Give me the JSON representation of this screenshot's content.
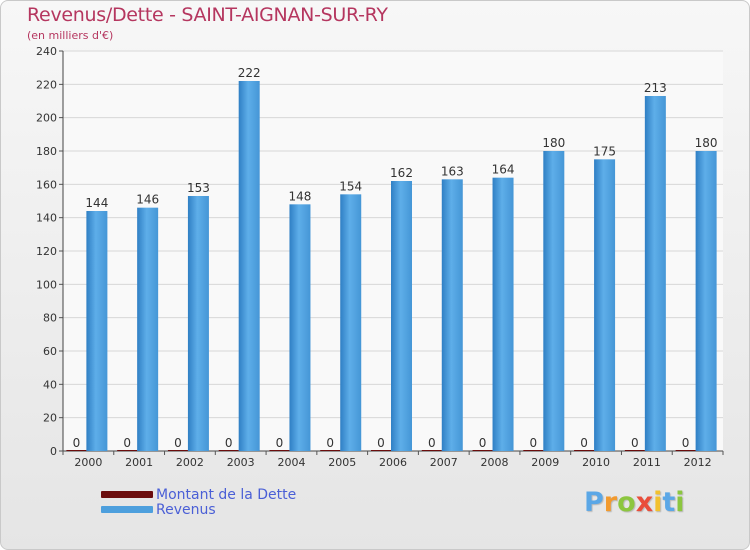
{
  "header": {
    "title": "Revenus/Dette - SAINT-AIGNAN-SUR-RY",
    "subtitle": "(en milliers d'€)"
  },
  "colors": {
    "dette": "#6b0d0d",
    "revenus": "#4d9fdd",
    "title": "#b5365f",
    "legend_text": "#4a5fd6"
  },
  "legend": {
    "items": [
      {
        "label": "Montant de la Dette",
        "color": "#6b0d0d"
      },
      {
        "label": "Revenus",
        "color": "#4d9fdd"
      }
    ]
  },
  "brand": {
    "text": "Proxiti"
  },
  "chart_data": {
    "type": "bar",
    "title": "Revenus/Dette - SAINT-AIGNAN-SUR-RY",
    "subtitle": "(en milliers d'€)",
    "xlabel": "",
    "ylabel": "",
    "ylim": [
      0,
      240
    ],
    "yticks": [
      0,
      20,
      40,
      60,
      80,
      100,
      120,
      140,
      160,
      180,
      200,
      220,
      240
    ],
    "grid": true,
    "legend_position": "bottom-left",
    "categories": [
      "2000",
      "2001",
      "2002",
      "2003",
      "2004",
      "2005",
      "2006",
      "2007",
      "2008",
      "2009",
      "2010",
      "2011",
      "2012"
    ],
    "series": [
      {
        "name": "Montant de la Dette",
        "values": [
          0,
          0,
          0,
          0,
          0,
          0,
          0,
          0,
          0,
          0,
          0,
          0,
          0
        ]
      },
      {
        "name": "Revenus",
        "values": [
          144,
          146,
          153,
          222,
          148,
          154,
          162,
          163,
          164,
          180,
          175,
          213,
          180
        ]
      }
    ]
  }
}
